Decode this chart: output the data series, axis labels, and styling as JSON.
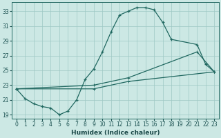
{
  "xlabel": "Humidex (Indice chaleur)",
  "bg_color": "#cce8e4",
  "grid_color": "#9dc8c4",
  "line_color": "#206860",
  "xlim": [
    -0.5,
    23.5
  ],
  "ylim": [
    18.5,
    34.2
  ],
  "xticks": [
    0,
    1,
    2,
    3,
    4,
    5,
    6,
    7,
    8,
    9,
    10,
    11,
    12,
    13,
    14,
    15,
    16,
    17,
    18,
    19,
    20,
    21,
    22,
    23
  ],
  "yticks": [
    19,
    21,
    23,
    25,
    27,
    29,
    31,
    33
  ],
  "curve1_x": [
    0,
    1,
    2,
    3,
    4,
    5,
    6,
    7,
    8,
    9,
    10,
    11,
    12,
    13,
    14,
    15,
    16,
    17,
    18,
    21,
    22,
    23
  ],
  "curve1_y": [
    22.5,
    21.2,
    20.5,
    20.1,
    19.9,
    19.0,
    19.5,
    21.0,
    23.8,
    25.2,
    27.5,
    30.2,
    32.5,
    33.0,
    33.5,
    33.5,
    33.2,
    31.5,
    29.2,
    28.5,
    25.8,
    24.8
  ],
  "line1_x": [
    0,
    9,
    13,
    21,
    23
  ],
  "line1_y": [
    22.5,
    23.0,
    24.0,
    27.5,
    24.8
  ],
  "line2_x": [
    0,
    9,
    13,
    23
  ],
  "line2_y": [
    22.5,
    22.5,
    23.5,
    24.8
  ]
}
